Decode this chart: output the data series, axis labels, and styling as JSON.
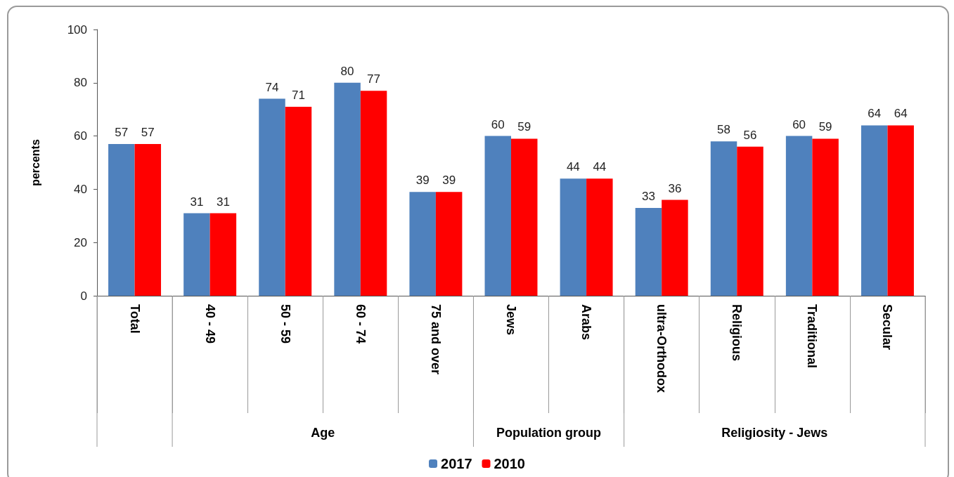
{
  "chart_data": {
    "type": "bar",
    "ylabel": "percents",
    "categories": [
      "Total",
      "40 - 49",
      "50 - 59",
      "60 - 74",
      "75 and over",
      "Jews",
      "Arabs",
      "ultra-Orthodox",
      "Religious",
      "Traditional",
      "Secular"
    ],
    "series": [
      {
        "name": "2017",
        "color": "#4f81bd",
        "values": [
          57,
          31,
          74,
          80,
          39,
          60,
          44,
          33,
          58,
          60,
          64
        ]
      },
      {
        "name": "2010",
        "color": "#ff0000",
        "values": [
          57,
          31,
          71,
          77,
          39,
          59,
          44,
          36,
          56,
          59,
          64
        ]
      }
    ],
    "ylim": [
      0,
      100
    ],
    "yticks": [
      0,
      20,
      40,
      60,
      80,
      100
    ],
    "grid": false,
    "legend": "bottom",
    "data_labels": true,
    "annotations": [
      "Age",
      "Population group",
      "Religiosity - Jews"
    ]
  }
}
